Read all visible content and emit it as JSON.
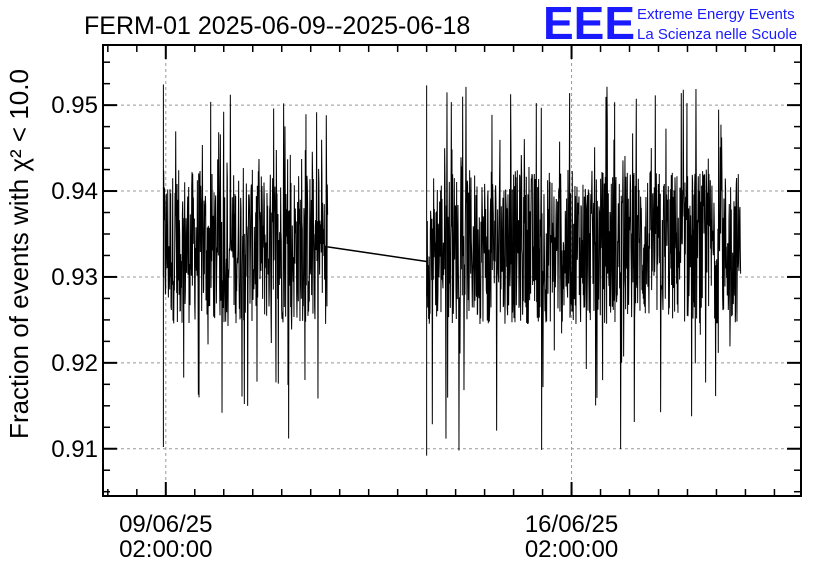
{
  "logo": {
    "letters": "EEE",
    "line1": "Extreme Energy Events",
    "line2": "La Scienza nelle Scuole",
    "color": "#1a1aff"
  },
  "chart_data": {
    "type": "line",
    "title": "FERM-01 2025-06-09--2025-06-18",
    "ylabel": "Fraction of events with χ² < 10.0",
    "xlabel": "",
    "x_tick_labels": [
      {
        "date": "2025-06-09T02:00:00",
        "line1": "09/06/25",
        "line2": "02:00:00"
      },
      {
        "date": "2025-06-16T02:00:00",
        "line1": "16/06/25",
        "line2": "02:00:00"
      }
    ],
    "y_ticks": [
      0.91,
      0.92,
      0.93,
      0.94,
      0.95
    ],
    "y_tick_labels": [
      "0.91",
      "0.92",
      "0.93",
      "0.94",
      "0.95"
    ],
    "xlim": [
      "2025-06-08T00:00:00",
      "2025-06-20T01:00:00"
    ],
    "ylim": [
      0.9045,
      0.957
    ],
    "grid": true,
    "line_color": "#000000",
    "series": [
      {
        "segments": [
          {
            "x_start": "2025-06-09T01:00:00",
            "x_end": "2025-06-11T21:00:00",
            "y_center": 0.9335,
            "y_band": [
              0.9255,
              0.9425
            ],
            "y_extremes": [
              0.9102,
              0.9524
            ]
          },
          {
            "x_start": "2025-06-13T14:00:00",
            "x_end": "2025-06-19T00:00:00",
            "y_center": 0.9335,
            "y_band": [
              0.9255,
              0.9425
            ],
            "y_extremes": [
              0.9092,
              0.9523
            ]
          }
        ],
        "gap_connector": {
          "from": [
            "2025-06-11T21:00:00",
            0.9335
          ],
          "to": [
            "2025-06-13T14:00:00",
            0.9318
          ]
        }
      }
    ]
  }
}
